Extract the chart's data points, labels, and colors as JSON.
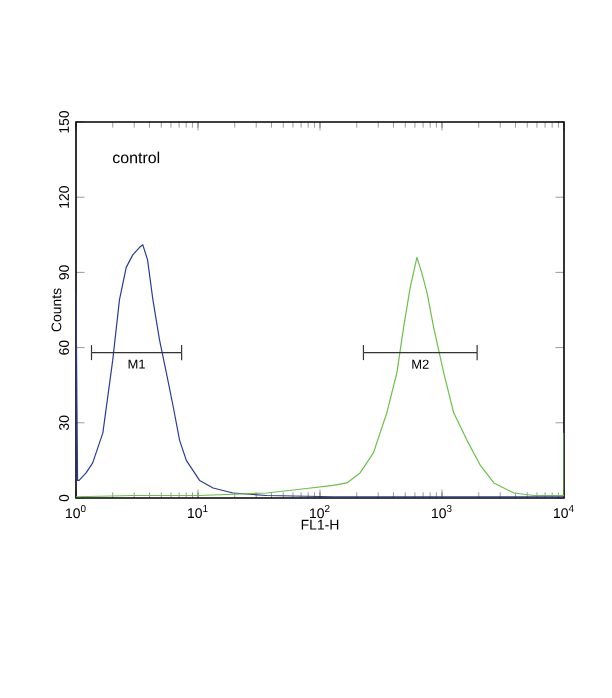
{
  "chart_data": {
    "type": "line",
    "xlabel": "FL1-H",
    "ylabel": "Counts",
    "log": "x",
    "xlim": [
      1,
      10000
    ],
    "ylim": [
      0,
      150
    ],
    "xticks": [
      {
        "value": 1,
        "label": "10$^{0}$"
      },
      {
        "value": 10,
        "label": "10$^{1}$"
      },
      {
        "value": 100,
        "label": "10$^{2}$"
      },
      {
        "value": 1000,
        "label": "10$^{3}$"
      },
      {
        "value": 10000,
        "label": "10$^{4}$"
      }
    ],
    "yticks": [
      0,
      30,
      60,
      90,
      120,
      150
    ],
    "grid": false,
    "marker": "none",
    "line_style": "solid",
    "series": [
      {
        "color": "#2b3a9a",
        "x": [
          1,
          1.03,
          1.06,
          1.21,
          1.37,
          1.66,
          2.0,
          2.27,
          2.58,
          2.92,
          3.32,
          3.53,
          3.86,
          4.27,
          4.84,
          5.5,
          6.23,
          7.07,
          8.02,
          10.3,
          13.3,
          19.4,
          36.5,
          128,
          455,
          10000
        ],
        "values": [
          82,
          7,
          7,
          10,
          14,
          26,
          55,
          79,
          92,
          97,
          100,
          101,
          95,
          79,
          63,
          50,
          37,
          23,
          15,
          7,
          4,
          2,
          1,
          0.5,
          0.5,
          0.5
        ]
      },
      {
        "color": "#6cc04a",
        "x": [
          1,
          2.92,
          10.3,
          36.5,
          68.5,
          128,
          166,
          213,
          274,
          353,
          427,
          484,
          549,
          623,
          681,
          753,
          855,
          1032,
          1247,
          1603,
          2064,
          2660,
          3880,
          5666,
          10000,
          10000
        ],
        "values": [
          0.5,
          1,
          1,
          2,
          3.5,
          5,
          6,
          10,
          18,
          34,
          50,
          68,
          84,
          96,
          90,
          82,
          68,
          50,
          34,
          23,
          13,
          6,
          2,
          1,
          1,
          26
        ]
      },
      {
        "name": "M1",
        "color": "#333333",
        "x": [
          1.34,
          7.34
        ],
        "values": [
          58,
          58
        ],
        "errors": [
          3,
          3
        ]
      },
      {
        "name": "M2",
        "color": "#333333",
        "x": [
          227,
          1941
        ],
        "values": [
          58,
          58
        ],
        "errors": [
          3,
          3
        ]
      }
    ],
    "annotations": [
      "control"
    ]
  }
}
